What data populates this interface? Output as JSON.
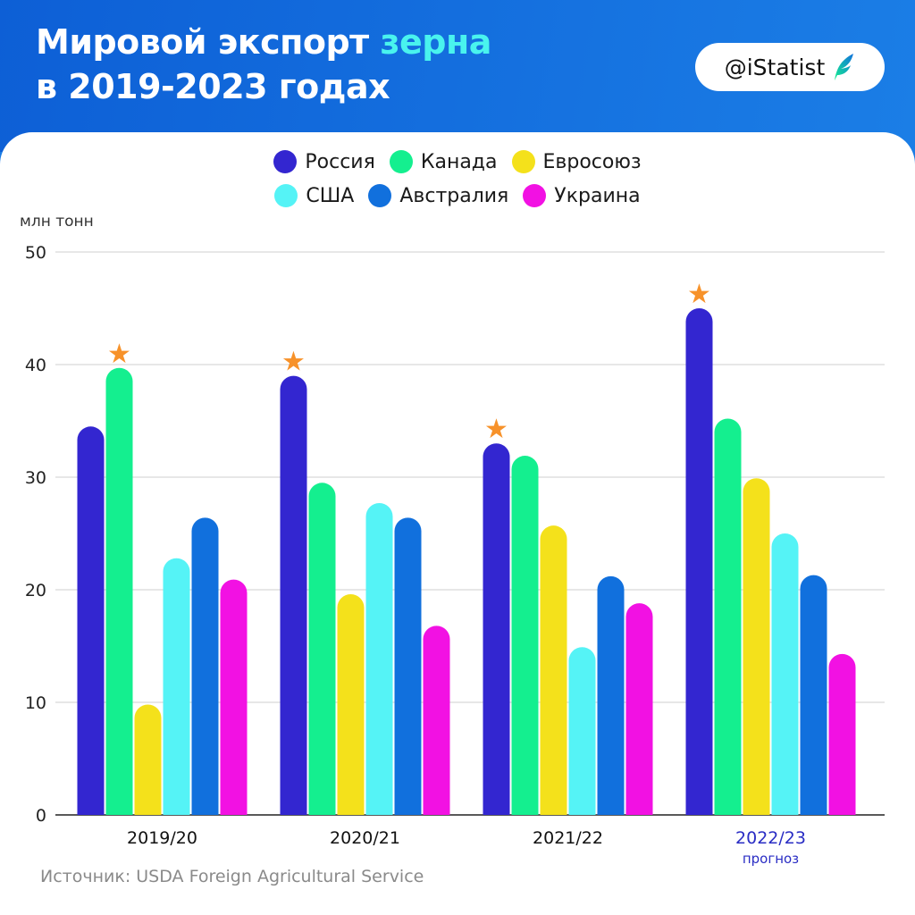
{
  "header": {
    "title_line1": "Мировой экспорт",
    "title_highlight": "зерна",
    "title_line2": "в 2019-2023 годах",
    "badge": "@iStatist",
    "badge_icon": "feather-logo-icon"
  },
  "legend": {
    "rows": [
      [
        {
          "label": "Россия",
          "color": "#3326d0"
        },
        {
          "label": "Канада",
          "color": "#14ef8f"
        },
        {
          "label": "Евросоюз",
          "color": "#f4e11b"
        }
      ],
      [
        {
          "label": "США",
          "color": "#55f3f6"
        },
        {
          "label": "Австралия",
          "color": "#1170dd"
        },
        {
          "label": "Украина",
          "color": "#f211e3"
        }
      ]
    ]
  },
  "chart_data": {
    "type": "bar",
    "ylabel": "млн тонн",
    "ylim": [
      0,
      50
    ],
    "yticks": [
      0,
      10,
      20,
      30,
      40,
      50
    ],
    "grid": true,
    "legend_position": "top",
    "categories": [
      "2019/20",
      "2020/21",
      "2021/22",
      "2022/23"
    ],
    "category_notes": [
      "",
      "",
      "",
      "прогноз"
    ],
    "forecast_index": 3,
    "series": [
      {
        "name": "Россия",
        "color": "#3326d0",
        "values": [
          34.5,
          39.0,
          33.0,
          45.0
        ]
      },
      {
        "name": "Канада",
        "color": "#14ef8f",
        "values": [
          39.7,
          29.5,
          31.9,
          35.2
        ]
      },
      {
        "name": "Евросоюз",
        "color": "#f4e11b",
        "values": [
          9.8,
          19.6,
          25.7,
          29.9
        ]
      },
      {
        "name": "США",
        "color": "#55f3f6",
        "values": [
          22.8,
          27.7,
          14.9,
          25.0
        ]
      },
      {
        "name": "Австралия",
        "color": "#1170dd",
        "values": [
          26.4,
          26.4,
          21.2,
          21.3
        ]
      },
      {
        "name": "Украина",
        "color": "#f211e3",
        "values": [
          20.9,
          16.8,
          18.8,
          14.3
        ]
      }
    ],
    "leader_marker": {
      "symbol": "★",
      "color": "#f7922a"
    }
  },
  "footer": {
    "source": "Источник: USDA Foreign Agricultural Service"
  }
}
